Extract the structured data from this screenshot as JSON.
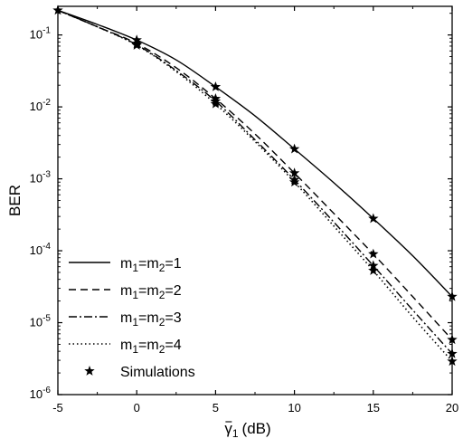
{
  "chart_data": {
    "type": "line",
    "title": "",
    "xlabel": "γ̄1 (dB)",
    "xlabel_parts": {
      "symbol": "γ",
      "subscript": "1",
      "unit": "(dB)"
    },
    "ylabel": "BER",
    "xlim": [
      -5,
      20
    ],
    "ylim": [
      1e-06,
      0.25
    ],
    "yscale": "log",
    "xticks": [
      "-5",
      "0",
      "5",
      "10",
      "15",
      "20"
    ],
    "yticks": [
      {
        "value": 0.1,
        "base": "10",
        "exp": "-1"
      },
      {
        "value": 0.01,
        "base": "10",
        "exp": "-2"
      },
      {
        "value": 0.001,
        "base": "10",
        "exp": "-3"
      },
      {
        "value": 0.0001,
        "base": "10",
        "exp": "-4"
      },
      {
        "value": 1e-05,
        "base": "10",
        "exp": "-5"
      },
      {
        "value": 1e-06,
        "base": "10",
        "exp": "-6"
      }
    ],
    "grid": false,
    "legend_position": "bottom-left",
    "x": [
      -5,
      -2.5,
      0,
      2.5,
      5,
      7.5,
      10,
      12.5,
      15,
      17.5,
      20
    ],
    "series": [
      {
        "name": "m1=m2=1",
        "legend": {
          "m": "m",
          "s1": "1",
          "eq1": "=",
          "s2": "2",
          "eq2": "=1"
        },
        "style": "solid",
        "values": [
          0.22,
          0.14,
          0.085,
          0.045,
          0.019,
          0.0075,
          0.0026,
          0.00088,
          0.00028,
          8.5e-05,
          2.3e-05
        ]
      },
      {
        "name": "m1=m2=2",
        "legend": {
          "m": "m",
          "s1": "1",
          "eq1": "=",
          "s2": "2",
          "eq2": "=2"
        },
        "style": "dashed",
        "values": [
          0.22,
          0.13,
          0.076,
          0.035,
          0.013,
          0.0042,
          0.0012,
          0.00033,
          9e-05,
          2.3e-05,
          5.8e-06
        ]
      },
      {
        "name": "m1=m2=3",
        "legend": {
          "m": "m",
          "s1": "1",
          "eq1": "=",
          "s2": "2",
          "eq2": "=3"
        },
        "style": "dashdot",
        "values": [
          0.22,
          0.13,
          0.073,
          0.032,
          0.012,
          0.0035,
          0.00097,
          0.00025,
          6.2e-05,
          1.5e-05,
          3.7e-06
        ]
      },
      {
        "name": "m1=m2=4",
        "legend": {
          "m": "m",
          "s1": "1",
          "eq1": "=",
          "s2": "2",
          "eq2": "=4"
        },
        "style": "dotted",
        "values": [
          0.22,
          0.13,
          0.072,
          0.031,
          0.011,
          0.0033,
          0.0009,
          0.00022,
          5.3e-05,
          1.2e-05,
          2.9e-06
        ]
      }
    ],
    "simulations": {
      "name": "Simulations",
      "points": [
        {
          "x": -5,
          "y": 0.22
        },
        {
          "x": 0,
          "y": 0.085
        },
        {
          "x": 0,
          "y": 0.076
        },
        {
          "x": 0,
          "y": 0.073
        },
        {
          "x": 0,
          "y": 0.072
        },
        {
          "x": 5,
          "y": 0.019
        },
        {
          "x": 5,
          "y": 0.013
        },
        {
          "x": 5,
          "y": 0.012
        },
        {
          "x": 5,
          "y": 0.011
        },
        {
          "x": 10,
          "y": 0.0026
        },
        {
          "x": 10,
          "y": 0.0012
        },
        {
          "x": 10,
          "y": 0.00097
        },
        {
          "x": 10,
          "y": 0.0009
        },
        {
          "x": 15,
          "y": 0.00028
        },
        {
          "x": 15,
          "y": 9e-05
        },
        {
          "x": 15,
          "y": 6.2e-05
        },
        {
          "x": 15,
          "y": 5.3e-05
        },
        {
          "x": 20,
          "y": 2.3e-05
        },
        {
          "x": 20,
          "y": 5.8e-06
        },
        {
          "x": 20,
          "y": 3.7e-06
        },
        {
          "x": 20,
          "y": 2.9e-06
        }
      ]
    },
    "colors": {
      "line": "#000000",
      "background": "#ffffff"
    }
  }
}
